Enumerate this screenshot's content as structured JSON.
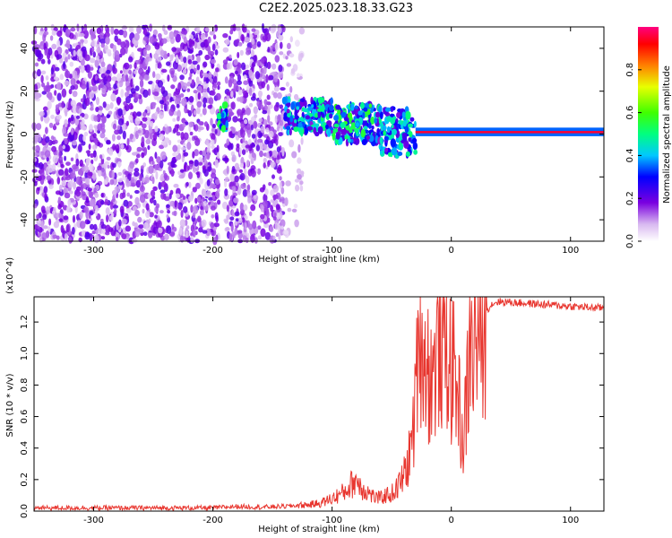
{
  "title": "C2E2.2025.023.18.33.G23",
  "chart_data": [
    {
      "type": "heatmap",
      "xlabel": "Height of straight line (km)",
      "ylabel": "Frequency (Hz)",
      "xlim": [
        -350,
        128
      ],
      "ylim": [
        -50,
        50
      ],
      "xticks": [
        -300,
        -200,
        -100,
        0,
        100
      ],
      "yticks": [
        -40,
        -20,
        0,
        20,
        40
      ],
      "colorbar": {
        "label": "Normalized spectral amplitude",
        "range": [
          0,
          1
        ],
        "ticks": [
          "0.0",
          "0.2",
          "0.4",
          "0.6",
          "0.8"
        ]
      },
      "regions": [
        {
          "x_range": [
            -350,
            -195
          ],
          "freq_range": [
            -50,
            50
          ],
          "amplitude": 0.1,
          "pattern": "noise"
        },
        {
          "x_range": [
            -190,
            -140
          ],
          "freq_range": [
            -50,
            50
          ],
          "amplitude": 0.08,
          "pattern": "noise"
        },
        {
          "x_range": [
            -140,
            -125
          ],
          "freq_range": [
            -50,
            50
          ],
          "amplitude": 0.03,
          "pattern": "sparse"
        },
        {
          "x_range": [
            -195,
            -188
          ],
          "freq_range": [
            2,
            14
          ],
          "amplitude": 0.45,
          "pattern": "blob"
        },
        {
          "x_range": [
            -140,
            -100
          ],
          "freq_range": [
            0,
            16
          ],
          "amplitude": 0.4,
          "pattern": "band"
        },
        {
          "x_range": [
            -100,
            -60
          ],
          "freq_range": [
            -4,
            14
          ],
          "amplitude": 0.45,
          "pattern": "band"
        },
        {
          "x_range": [
            -60,
            -30
          ],
          "freq_range": [
            -10,
            12
          ],
          "amplitude": 0.4,
          "pattern": "band"
        },
        {
          "x_range": [
            -30,
            128
          ],
          "freq_range": [
            -1,
            3
          ],
          "amplitude": 0.95,
          "pattern": "line"
        }
      ]
    },
    {
      "type": "line",
      "xlabel": "Height of straight line (km)",
      "ylabel": "SNR (10 * v/v)",
      "multiplier": "(x10^4)",
      "xlim": [
        -350,
        128
      ],
      "ylim": [
        0,
        13600
      ],
      "xticks": [
        -300,
        -200,
        -100,
        0,
        100
      ],
      "yticks": [
        0,
        2000,
        4000,
        6000,
        8000,
        10000,
        12000
      ],
      "ytick_labels": [
        "0.0",
        "0.2",
        "0.4",
        "0.6",
        "0.8",
        "1.0",
        "1.2"
      ],
      "series": [
        {
          "color": "#e8362f",
          "x": [
            -350,
            -300,
            -250,
            -200,
            -180,
            -160,
            -140,
            -120,
            -110,
            -100,
            -90,
            -80,
            -75,
            -70,
            -65,
            -60,
            -55,
            -50,
            -45,
            -40,
            -35,
            -30,
            -27,
            -25,
            -20,
            -15,
            -10,
            -5,
            0,
            5,
            10,
            15,
            20,
            25,
            30,
            35,
            40,
            60,
            80,
            100,
            120,
            128
          ],
          "y": [
            200,
            200,
            200,
            200,
            300,
            250,
            300,
            400,
            500,
            800,
            1200,
            2000,
            1500,
            1200,
            900,
            800,
            1000,
            1100,
            1500,
            2200,
            3500,
            6500,
            13500,
            11000,
            9000,
            8500,
            11000,
            10500,
            9000,
            8000,
            4000,
            9500,
            11000,
            12000,
            12800,
            13200,
            13300,
            13200,
            13100,
            13000,
            12900,
            12900
          ]
        }
      ]
    }
  ]
}
